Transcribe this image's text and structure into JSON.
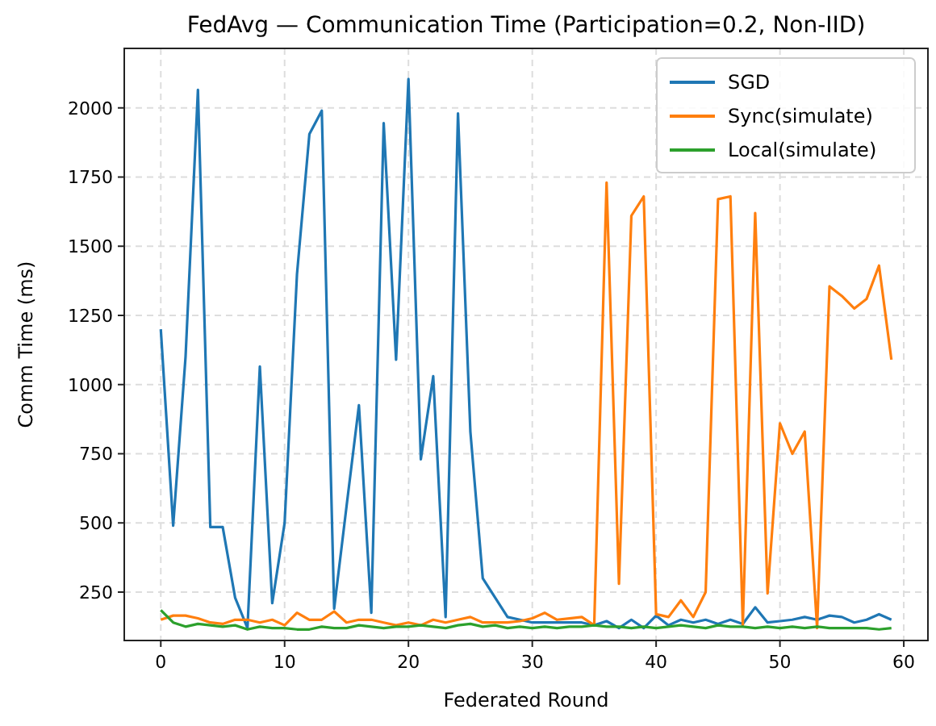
{
  "chart_data": {
    "type": "line",
    "title": "FedAvg — Communication Time (Participation=0.2, Non-IID)",
    "xlabel": "Federated Round",
    "ylabel": "Comm Time (ms)",
    "x": [
      0,
      1,
      2,
      3,
      4,
      5,
      6,
      7,
      8,
      9,
      10,
      11,
      12,
      13,
      14,
      15,
      16,
      17,
      18,
      19,
      20,
      21,
      22,
      23,
      24,
      25,
      26,
      27,
      28,
      29,
      30,
      31,
      32,
      33,
      34,
      35,
      36,
      37,
      38,
      39,
      40,
      41,
      42,
      43,
      44,
      45,
      46,
      47,
      48,
      49,
      50,
      51,
      52,
      53,
      54,
      55,
      56,
      57,
      58,
      59
    ],
    "series": [
      {
        "name": "SGD",
        "color": "#1f77b4",
        "values": [
          1200,
          490,
          1100,
          2065,
          485,
          485,
          230,
          120,
          1065,
          210,
          500,
          1400,
          1905,
          1990,
          190,
          560,
          925,
          175,
          1945,
          1090,
          2105,
          730,
          1030,
          160,
          1980,
          830,
          300,
          230,
          160,
          150,
          140,
          140,
          140,
          140,
          140,
          130,
          145,
          120,
          150,
          120,
          165,
          130,
          150,
          140,
          150,
          135,
          150,
          135,
          195,
          140,
          145,
          150,
          160,
          150,
          165,
          160,
          140,
          150,
          170,
          150
        ]
      },
      {
        "name": "Sync(simulate)",
        "color": "#ff7f0e",
        "values": [
          150,
          165,
          165,
          155,
          140,
          135,
          150,
          150,
          140,
          150,
          130,
          175,
          150,
          150,
          180,
          140,
          150,
          150,
          140,
          130,
          140,
          130,
          150,
          140,
          150,
          160,
          140,
          140,
          140,
          145,
          155,
          175,
          150,
          155,
          160,
          130,
          1730,
          280,
          1610,
          1680,
          170,
          160,
          220,
          160,
          250,
          1670,
          1680,
          130,
          1620,
          245,
          860,
          750,
          830,
          120,
          1355,
          1320,
          1275,
          1310,
          1430,
          1090
        ]
      },
      {
        "name": "Local(simulate)",
        "color": "#2ca02c",
        "values": [
          185,
          140,
          125,
          135,
          130,
          125,
          130,
          115,
          125,
          120,
          120,
          115,
          115,
          125,
          120,
          120,
          130,
          125,
          120,
          125,
          125,
          130,
          125,
          120,
          130,
          135,
          125,
          130,
          120,
          125,
          120,
          125,
          120,
          125,
          125,
          130,
          125,
          125,
          120,
          125,
          120,
          125,
          130,
          125,
          120,
          130,
          125,
          125,
          120,
          125,
          120,
          125,
          120,
          125,
          120,
          120,
          120,
          120,
          115,
          120
        ]
      }
    ],
    "xlim": [
      -2.95,
      61.95
    ],
    "ylim": [
      75,
      2215
    ],
    "xticks": [
      0,
      10,
      20,
      30,
      40,
      50,
      60
    ],
    "yticks": [
      250,
      500,
      750,
      1000,
      1250,
      1500,
      1750,
      2000
    ],
    "grid": true,
    "legend": "top right",
    "line_style": "solid",
    "marker": "none"
  }
}
